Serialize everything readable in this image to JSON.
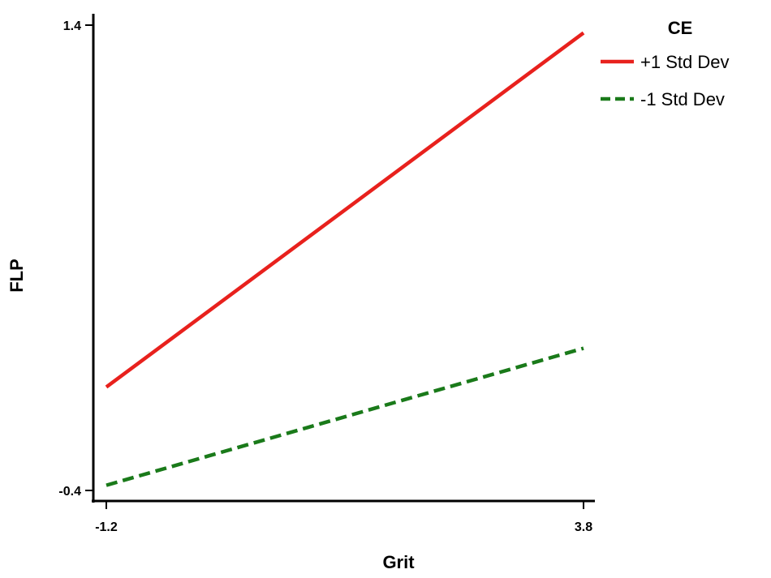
{
  "chart_data": {
    "type": "line",
    "xlabel": "Grit",
    "ylabel": "FLP",
    "x": [
      -1.2,
      3.8
    ],
    "xlim": [
      -1.2,
      3.8
    ],
    "ylim": [
      -0.4,
      1.4
    ],
    "xticks": [
      "-1.2",
      "3.8"
    ],
    "yticks": [
      "1.4",
      "-0.4"
    ],
    "grid": false,
    "legend": {
      "title": "CE",
      "placement": "top-right"
    },
    "series": [
      {
        "name": "+1 Std Dev",
        "values": [
          0.0,
          1.37
        ],
        "color": "#e8211d",
        "dash": "solid"
      },
      {
        "name": "-1 Std Dev",
        "values": [
          -0.38,
          0.15
        ],
        "color": "#1a7a1a",
        "dash": "dashed"
      }
    ]
  }
}
